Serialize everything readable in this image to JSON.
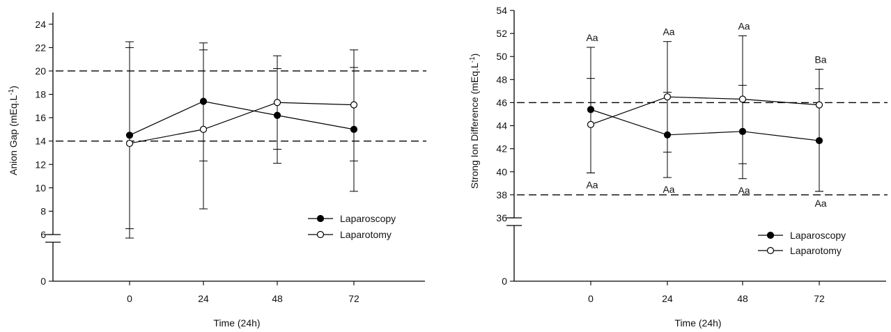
{
  "chart_data": [
    {
      "type": "line",
      "title": "",
      "xlabel": "Time (24h)",
      "ylabel": "Anion Gap (mEq.L",
      "ylabel_sup": "-1",
      "ylabel_close": ")",
      "categories": [
        "0",
        "24",
        "48",
        "72"
      ],
      "x": [
        0,
        24,
        48,
        72
      ],
      "ylim": [
        0,
        25
      ],
      "axis_break_below": 6,
      "yticks": [
        0,
        6,
        8,
        10,
        12,
        14,
        16,
        18,
        20,
        22,
        24
      ],
      "yticklabels": [
        "0",
        "6",
        "8",
        "10",
        "12",
        "14",
        "16",
        "18",
        "20",
        "22",
        "24"
      ],
      "reference_lines": [
        14,
        20
      ],
      "grid": false,
      "legend_position": "lower-right",
      "series": [
        {
          "name": "Laparoscopy",
          "marker": "filled-circle",
          "values": [
            14.5,
            17.4,
            16.2,
            15.0
          ],
          "err_low": [
            6.5,
            12.3,
            13.3,
            12.3
          ],
          "err_high": [
            22.5,
            22.4,
            20.2,
            20.3
          ]
        },
        {
          "name": "Laparotomy",
          "marker": "open-circle",
          "values": [
            13.8,
            15.0,
            17.3,
            17.1
          ],
          "err_low": [
            5.7,
            8.2,
            12.1,
            9.7
          ],
          "err_high": [
            22.0,
            21.8,
            21.3,
            21.8
          ]
        }
      ],
      "annotations": []
    },
    {
      "type": "line",
      "title": "",
      "xlabel": "Time (24h)",
      "ylabel": "Strong Ion Difference (mEq.L",
      "ylabel_sup": "-1",
      "ylabel_close": ")",
      "categories": [
        "0",
        "24",
        "48",
        "72"
      ],
      "x": [
        0,
        24,
        48,
        72
      ],
      "ylim": [
        0,
        54
      ],
      "axis_break_below": 36,
      "yticks": [
        0,
        36,
        38,
        40,
        42,
        44,
        46,
        48,
        50,
        52,
        54
      ],
      "yticklabels": [
        "0",
        "36",
        "38",
        "40",
        "42",
        "44",
        "46",
        "48",
        "50",
        "52",
        "54"
      ],
      "reference_lines": [
        38,
        46
      ],
      "grid": false,
      "legend_position": "lower-right",
      "series": [
        {
          "name": "Laparoscopy",
          "marker": "filled-circle",
          "values": [
            45.4,
            43.2,
            43.5,
            42.7
          ],
          "err_low": [
            39.9,
            39.5,
            39.4,
            38.3
          ],
          "err_high": [
            50.8,
            46.9,
            47.5,
            47.2
          ]
        },
        {
          "name": "Laparotomy",
          "marker": "open-circle",
          "values": [
            44.1,
            46.5,
            46.3,
            45.8
          ],
          "err_low": [
            39.9,
            41.7,
            40.7,
            38.3
          ],
          "err_high": [
            48.1,
            51.3,
            51.8,
            48.9
          ]
        }
      ],
      "annotations": [
        {
          "x": 0,
          "text": "Aa",
          "pos": "above",
          "y": 50.8
        },
        {
          "x": 24,
          "text": "Aa",
          "pos": "above",
          "y": 51.3
        },
        {
          "x": 48,
          "text": "Aa",
          "pos": "above",
          "y": 51.8
        },
        {
          "x": 72,
          "text": "Ba",
          "pos": "above",
          "y": 48.9
        },
        {
          "x": 0,
          "text": "Aa",
          "pos": "below",
          "y": 39.9
        },
        {
          "x": 24,
          "text": "Aa",
          "pos": "below",
          "y": 39.5
        },
        {
          "x": 48,
          "text": "Aa",
          "pos": "below",
          "y": 39.4
        },
        {
          "x": 72,
          "text": "Aa",
          "pos": "below",
          "y": 38.3
        }
      ]
    }
  ]
}
